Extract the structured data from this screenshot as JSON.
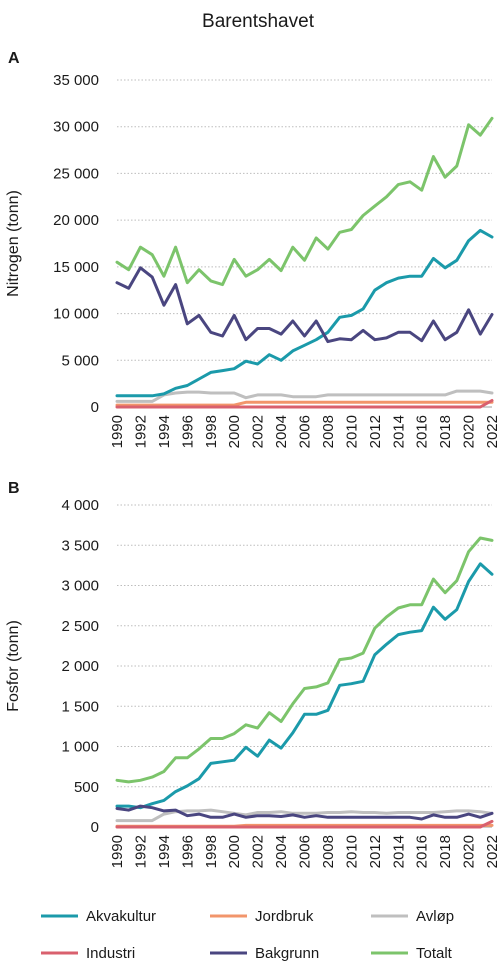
{
  "figure": {
    "title": "Barentshavet"
  },
  "legend": [
    {
      "name": "Akvakultur",
      "color": "#1b9aaa"
    },
    {
      "name": "Jordbruk",
      "color": "#f2956b"
    },
    {
      "name": "Avløp",
      "color": "#bfbfbf"
    },
    {
      "name": "Industri",
      "color": "#d9606e"
    },
    {
      "name": "Bakgrunn",
      "color": "#4a4680"
    },
    {
      "name": "Totalt",
      "color": "#7cc46b"
    }
  ],
  "chart_data": [
    {
      "type": "line",
      "panel_label": "A",
      "title": "",
      "xlabel": "",
      "ylabel": "Nitrogen (tonn)",
      "ylim": [
        0,
        35000
      ],
      "yticks": [
        0,
        5000,
        10000,
        15000,
        20000,
        25000,
        30000,
        35000
      ],
      "ytick_labels": [
        "0",
        "5 000",
        "10 000",
        "15 000",
        "20 000",
        "25 000",
        "30 000",
        "35 000"
      ],
      "x": [
        1990,
        1991,
        1992,
        1993,
        1994,
        1995,
        1996,
        1997,
        1998,
        1999,
        2000,
        2001,
        2002,
        2003,
        2004,
        2005,
        2006,
        2007,
        2008,
        2009,
        2010,
        2011,
        2012,
        2013,
        2014,
        2015,
        2016,
        2017,
        2018,
        2019,
        2020,
        2021,
        2022
      ],
      "xtick_labels": [
        "1990",
        "1992",
        "1994",
        "1996",
        "1998",
        "2000",
        "2002",
        "2004",
        "2006",
        "2008",
        "2010",
        "2012",
        "2014",
        "2016",
        "2018",
        "2020",
        "2022"
      ],
      "grid": "horizontal",
      "series": [
        {
          "name": "Avløp",
          "values": [
            600,
            600,
            600,
            600,
            1300,
            1500,
            1600,
            1600,
            1500,
            1500,
            1500,
            1000,
            1300,
            1300,
            1300,
            1100,
            1100,
            1100,
            1300,
            1300,
            1300,
            1300,
            1300,
            1300,
            1300,
            1300,
            1300,
            1300,
            1300,
            1700,
            1700,
            1700,
            1500
          ]
        },
        {
          "name": "Jordbruk",
          "values": [
            200,
            200,
            200,
            200,
            200,
            200,
            200,
            200,
            200,
            200,
            200,
            500,
            500,
            500,
            500,
            500,
            500,
            500,
            500,
            500,
            500,
            500,
            500,
            500,
            500,
            500,
            500,
            500,
            500,
            500,
            500,
            500,
            500
          ]
        },
        {
          "name": "Industri",
          "values": [
            0,
            0,
            0,
            0,
            0,
            0,
            0,
            0,
            0,
            0,
            0,
            0,
            0,
            0,
            0,
            0,
            0,
            0,
            0,
            0,
            0,
            0,
            0,
            0,
            0,
            0,
            0,
            0,
            0,
            0,
            0,
            0,
            700
          ]
        },
        {
          "name": "Akvakultur",
          "values": [
            1200,
            1200,
            1200,
            1200,
            1400,
            2000,
            2300,
            3000,
            3700,
            3900,
            4100,
            4900,
            4600,
            5600,
            5000,
            6000,
            6600,
            7200,
            8000,
            9600,
            9800,
            10500,
            12500,
            13300,
            13800,
            14000,
            14000,
            15900,
            14900,
            15700,
            17800,
            18900,
            18200
          ]
        },
        {
          "name": "Bakgrunn",
          "values": [
            13300,
            12700,
            14900,
            13900,
            10900,
            13100,
            8900,
            9800,
            8000,
            7600,
            9800,
            7200,
            8400,
            8400,
            7800,
            9200,
            7600,
            9200,
            7000,
            7300,
            7200,
            8200,
            7200,
            7400,
            8000,
            8000,
            7100,
            9200,
            7200,
            8000,
            10400,
            7800,
            9900
          ]
        },
        {
          "name": "Totalt",
          "values": [
            15500,
            14700,
            17100,
            16300,
            14000,
            17100,
            13300,
            14700,
            13500,
            13100,
            15800,
            14000,
            14700,
            15800,
            14600,
            17100,
            15700,
            18100,
            16900,
            18700,
            19000,
            20500,
            21500,
            22500,
            23800,
            24100,
            23200,
            26800,
            24600,
            25800,
            30200,
            29100,
            30900
          ]
        }
      ]
    },
    {
      "type": "line",
      "panel_label": "B",
      "title": "",
      "xlabel": "",
      "ylabel": "Fosfor (tonn)",
      "ylim": [
        0,
        4000
      ],
      "yticks": [
        0,
        500,
        1000,
        1500,
        2000,
        2500,
        3000,
        3500,
        4000
      ],
      "ytick_labels": [
        "0",
        "500",
        "1 000",
        "1 500",
        "2 000",
        "2 500",
        "3 000",
        "3 500",
        "4 000"
      ],
      "x": [
        1990,
        1991,
        1992,
        1993,
        1994,
        1995,
        1996,
        1997,
        1998,
        1999,
        2000,
        2001,
        2002,
        2003,
        2004,
        2005,
        2006,
        2007,
        2008,
        2009,
        2010,
        2011,
        2012,
        2013,
        2014,
        2015,
        2016,
        2017,
        2018,
        2019,
        2020,
        2021,
        2022
      ],
      "xtick_labels": [
        "1990",
        "1992",
        "1994",
        "1996",
        "1998",
        "2000",
        "2002",
        "2004",
        "2006",
        "2008",
        "2010",
        "2012",
        "2014",
        "2016",
        "2018",
        "2020",
        "2022"
      ],
      "grid": "horizontal",
      "series": [
        {
          "name": "Avløp",
          "values": [
            80,
            80,
            80,
            80,
            160,
            190,
            200,
            200,
            210,
            190,
            170,
            150,
            180,
            180,
            190,
            170,
            170,
            170,
            180,
            180,
            190,
            180,
            180,
            170,
            180,
            180,
            180,
            180,
            190,
            200,
            200,
            190,
            170
          ]
        },
        {
          "name": "Jordbruk",
          "values": [
            10,
            10,
            10,
            10,
            10,
            10,
            10,
            10,
            10,
            10,
            10,
            20,
            20,
            20,
            20,
            20,
            20,
            20,
            20,
            20,
            20,
            20,
            20,
            20,
            20,
            20,
            20,
            20,
            20,
            20,
            20,
            20,
            20
          ]
        },
        {
          "name": "Industri",
          "values": [
            0,
            0,
            0,
            0,
            0,
            0,
            0,
            0,
            0,
            0,
            0,
            0,
            0,
            0,
            0,
            0,
            0,
            0,
            0,
            0,
            0,
            0,
            0,
            0,
            0,
            0,
            0,
            0,
            0,
            0,
            0,
            0,
            70
          ]
        },
        {
          "name": "Akvakultur",
          "values": [
            260,
            260,
            240,
            290,
            330,
            440,
            510,
            600,
            790,
            810,
            830,
            990,
            880,
            1080,
            980,
            1170,
            1400,
            1400,
            1450,
            1760,
            1780,
            1810,
            2140,
            2270,
            2390,
            2420,
            2440,
            2730,
            2580,
            2700,
            3050,
            3270,
            3140
          ]
        },
        {
          "name": "Bakgrunn",
          "values": [
            230,
            210,
            260,
            240,
            200,
            210,
            140,
            160,
            120,
            120,
            160,
            120,
            140,
            140,
            130,
            150,
            120,
            140,
            120,
            120,
            120,
            120,
            120,
            120,
            120,
            120,
            100,
            150,
            120,
            120,
            160,
            120,
            170
          ]
        },
        {
          "name": "Totalt",
          "values": [
            580,
            560,
            580,
            620,
            690,
            860,
            860,
            970,
            1100,
            1100,
            1160,
            1270,
            1230,
            1420,
            1310,
            1530,
            1720,
            1740,
            1790,
            2080,
            2100,
            2160,
            2470,
            2610,
            2720,
            2760,
            2760,
            3080,
            2910,
            3060,
            3420,
            3590,
            3560
          ]
        }
      ]
    }
  ]
}
